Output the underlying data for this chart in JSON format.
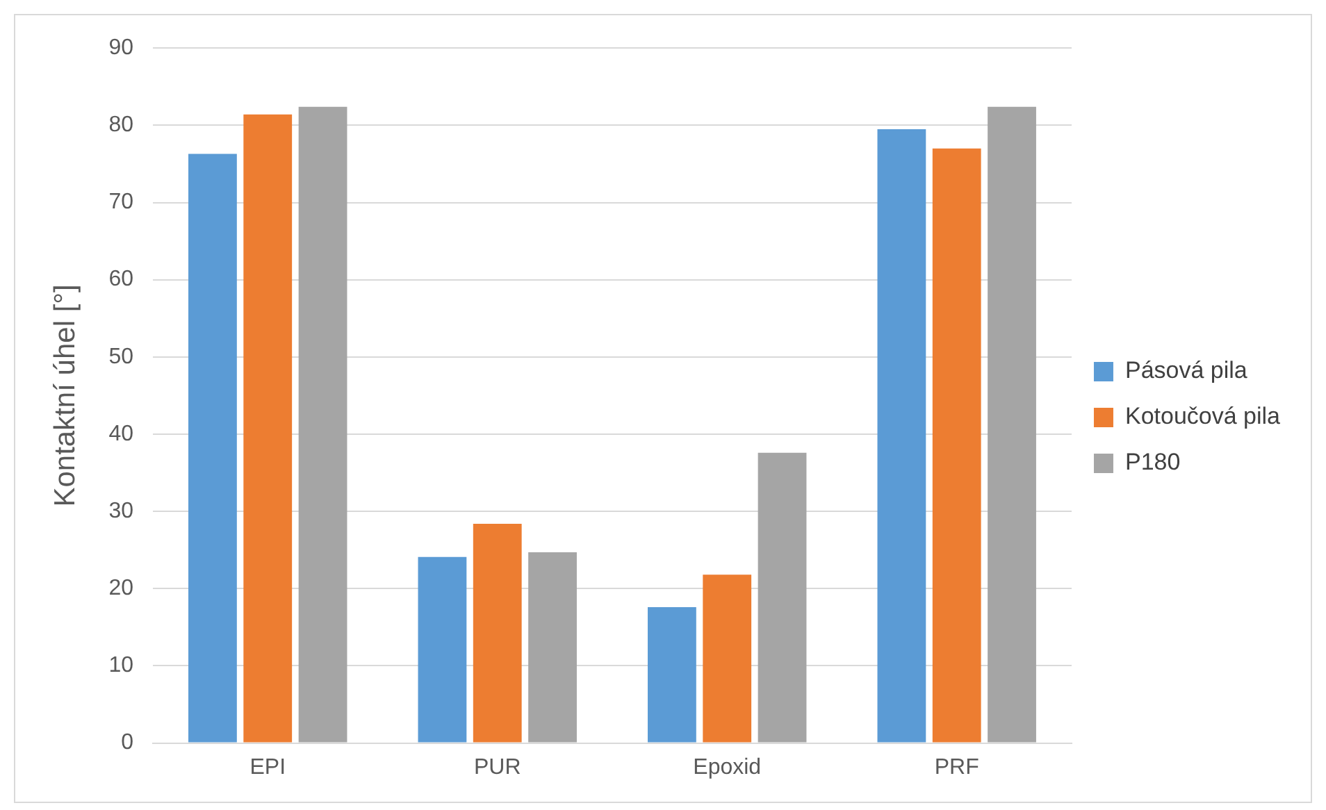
{
  "chart_data": {
    "type": "bar",
    "ylabel": "Kontaktní úhel [°]",
    "categories": [
      "EPI",
      "PUR",
      "Epoxid",
      "PRF"
    ],
    "series": [
      {
        "name": "Pásová pila",
        "color": "#5b9bd5",
        "values": [
          76.3,
          24.1,
          17.6,
          79.5
        ]
      },
      {
        "name": "Kotoučová pila",
        "color": "#ed7d31",
        "values": [
          81.4,
          28.4,
          21.8,
          77.0
        ]
      },
      {
        "name": "P180",
        "color": "#a5a5a5",
        "values": [
          82.4,
          24.7,
          37.6,
          82.4
        ]
      }
    ],
    "ylim": [
      0,
      90
    ],
    "yticks": [
      0,
      10,
      20,
      30,
      40,
      50,
      60,
      70,
      80,
      90
    ],
    "grid": "y",
    "legend": "right"
  }
}
